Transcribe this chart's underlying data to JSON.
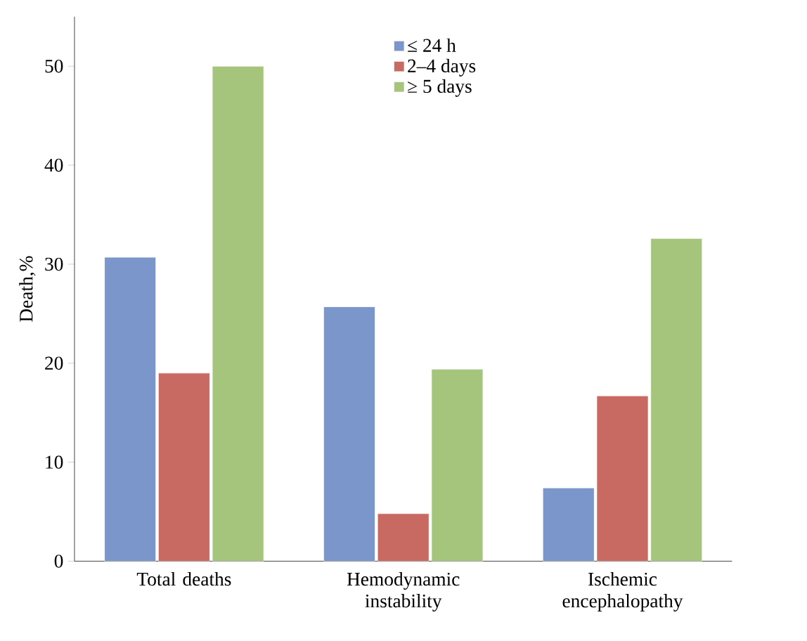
{
  "chart_data": {
    "type": "bar",
    "ylabel": "Death,%",
    "categories": [
      "Total deaths",
      "Hemodynamic instability",
      "Ischemic encephalopathy"
    ],
    "series": [
      {
        "name": "≤ 24 h",
        "color": "#7b96cb",
        "values": [
          30.7,
          25.7,
          7.4
        ]
      },
      {
        "name": "2–4 days",
        "color": "#c96a62",
        "values": [
          19.0,
          4.8,
          16.7
        ]
      },
      {
        "name": "≥ 5 days",
        "color": "#a6c57c",
        "values": [
          50.0,
          19.4,
          32.6
        ]
      }
    ],
    "ylim": [
      0,
      55
    ],
    "yticks": [
      0,
      10,
      20,
      30,
      40,
      50
    ],
    "grid": false,
    "legend": "top"
  }
}
